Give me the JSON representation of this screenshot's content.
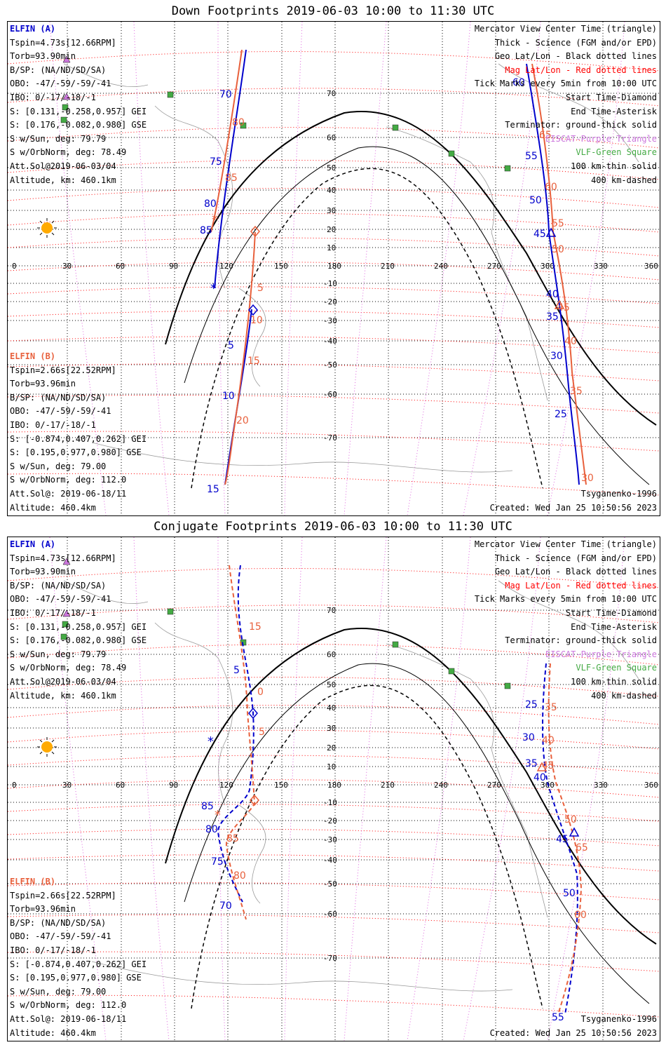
{
  "top": {
    "title": "Down Footprints 2019-06-03 10:00 to 11:30 UTC",
    "elfin_a": {
      "name": "ELFIN (A)",
      "lines": [
        "Tspin=4.73s[12.66RPM]",
        "Torb=93.90min",
        "B/SP: (NA/ND/SD/SA)",
        "OBO: -47/-59/-59/-41",
        "IBO: 0/-17/-18/-1",
        "S: [0.131,-0.258,0.957] GEI",
        "S: [0.176,-0.082,0.980] GSE",
        "S w/Sun, deg: 79.79",
        "S w/OrbNorm, deg: 78.49",
        "Att.Sol@2019-06-03/04",
        "Altitude, km: 460.1km"
      ]
    },
    "elfin_b": {
      "name": "ELFIN (B)",
      "lines": [
        "Tspin=2.66s[22.52RPM]",
        "Torb=93.96min",
        "B/SP: (NA/ND/SD/SA)",
        "OBO: -47/-59/-59/-41",
        "IBO: 0/-17/-18/-1",
        "S: [-0.874,0.407,0.262] GEI",
        "S: [0.195,0.977,0.980] GSE",
        "S w/Sun, deg: 79.00",
        "S w/OrbNorm, deg: 112.0",
        "Att.Sol@: 2019-06-18/11",
        "Altitude: 460.4km"
      ]
    },
    "legend": {
      "l1": "Mercator View Center Time (triangle)",
      "l2": "Thick - Science (FGM and/or EPD)",
      "l3": "Geo Lat/Lon - Black dotted lines",
      "l4": "Mag Lat/Lon - Red dotted lines",
      "l5": "Tick Marks every 5min from 10:00 UTC",
      "l6": "Start Time-Diamond",
      "l7": "End Time-Asterisk",
      "l8": "Terminator: ground-thick solid",
      "l9": "EISCAT-Purple Triangle",
      "l10": "VLF-Green Square",
      "l11": "100 km-thin solid",
      "l12": "400 km-dashed"
    },
    "model": "Tsyganenko-1996",
    "created": "Created: Wed Jan 25 10:50:56 2023",
    "lon_labels": [
      "0",
      "30",
      "60",
      "90",
      "120",
      "150",
      "180",
      "210",
      "240",
      "270",
      "300",
      "330",
      "360"
    ],
    "lat_labels": [
      "70",
      "60",
      "50",
      "40",
      "30",
      "20",
      "10",
      "-10",
      "-20",
      "-30",
      "-40",
      "-50",
      "-60",
      "-70"
    ],
    "ticks_a": [
      "70",
      "75",
      "80",
      "85",
      "40",
      "35",
      "30",
      "25",
      "60",
      "55",
      "50",
      "45"
    ],
    "ticks_a_org": [
      "80",
      "85",
      "65",
      "60",
      "55",
      "50",
      "45",
      "40",
      "35",
      "30"
    ],
    "ticks_b": [
      "5",
      "10",
      "15"
    ],
    "ticks_b_org": [
      "5",
      "10",
      "15",
      "20"
    ]
  },
  "bottom": {
    "title": "Conjugate Footprints 2019-06-03 10:00 to 11:30 UTC",
    "elfin_a": {
      "name": "ELFIN (A)",
      "lines": [
        "Tspin=4.73s[12.66RPM]",
        "Torb=93.90min",
        "B/SP: (NA/ND/SD/SA)",
        "OBO: -47/-59/-59/-41",
        "IBO: 0/-17/-18/-1",
        "S: [0.131,-0.258,0.957] GEI",
        "S: [0.176,-0.082,0.980] GSE",
        "S w/Sun, deg: 79.79",
        "S w/OrbNorm, deg: 78.49",
        "Att.Sol@2019-06-03/04",
        "Altitude, km: 460.1km"
      ]
    },
    "elfin_b": {
      "name": "ELFIN (B)",
      "lines": [
        "Tspin=2.66s[22.52RPM]",
        "Torb=93.96min",
        "B/SP: (NA/ND/SD/SA)",
        "OBO: -47/-59/-59/-41",
        "IBO: 0/-17/-18/-1",
        "S: [-0.874,0.407,0.262] GEI",
        "S: [0.195,0.977,0.980] GSE",
        "S w/Sun, deg: 79.00",
        "S w/OrbNorm, deg: 112.0",
        "Att.Sol@: 2019-06-18/11",
        "Altitude: 460.4km"
      ]
    },
    "legend": {
      "l1": "Mercator View Center Time (triangle)",
      "l2": "Thick - Science (FGM and/or EPD)",
      "l3": "Geo Lat/Lon - Black dotted lines",
      "l4": "Mag Lat/Lon - Red dotted lines",
      "l5": "Tick Marks every 5min from 10:00 UTC",
      "l6": "Start Time-Diamond",
      "l7": "End Time-Asterisk",
      "l8": "Terminator: ground-thick solid",
      "l9": "EISCAT-Purple Triangle",
      "l10": "VLF-Green Square",
      "l11": "100 km-thin solid",
      "l12": "400 km-dashed"
    },
    "model": "Tsyganenko-1996",
    "created": "Created: Wed Jan 25 10:50:56 2023",
    "lon_labels": [
      "0",
      "30",
      "60",
      "90",
      "120",
      "150",
      "180",
      "210",
      "240",
      "270",
      "300",
      "330",
      "360"
    ],
    "lat_labels": [
      "70",
      "60",
      "50",
      "40",
      "30",
      "20",
      "10",
      "-10",
      "-20",
      "-30",
      "-40",
      "-50",
      "-60",
      "-70"
    ],
    "ticks_a": [
      "5",
      "85",
      "80",
      "75",
      "70",
      "25",
      "30",
      "35",
      "40",
      "45",
      "50",
      "55"
    ],
    "ticks_a_org": [
      "15",
      "0",
      "5",
      "85",
      "80",
      "35",
      "40",
      "45",
      "50",
      "65",
      "60"
    ]
  },
  "colors": {
    "a_track": "#0000cc",
    "b_track": "#e8603c",
    "geo_grid": "#000000",
    "mag_grid": "#ff0000",
    "eiscat": "#cc77dd",
    "vlf": "#44aa44",
    "sun": "#ffaa00"
  }
}
